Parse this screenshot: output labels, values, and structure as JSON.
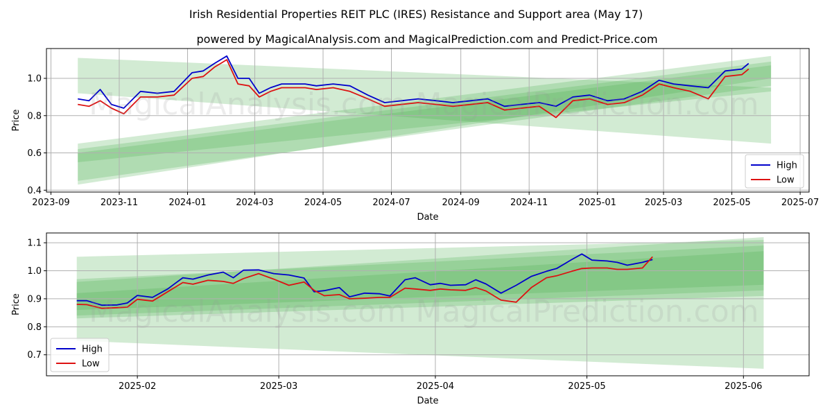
{
  "figure": {
    "title": "Irish Residential Properties REIT PLC (IRES) Resistance and Support area (May 17)",
    "subtitle": "powered by MagicalAnalysis.com and MagicalPrediction.com and Predict-Price.com",
    "watermarks": [
      "MagicalAnalysis.com",
      "MagicalPrediction.com"
    ]
  },
  "colors": {
    "high": "#0000cc",
    "low": "#dd1111",
    "band": "#4caf50",
    "grid": "#b0b0b0"
  },
  "chart_data": [
    {
      "type": "line",
      "xlabel": "Date",
      "ylabel": "Price",
      "grid": true,
      "legend_position": "lower-right",
      "xlim": [
        "2023-08-28",
        "2025-07-09"
      ],
      "ylim": [
        0.39,
        1.16
      ],
      "xticks": [
        "2023-09",
        "2023-11",
        "2024-01",
        "2024-03",
        "2024-05",
        "2024-07",
        "2024-09",
        "2024-11",
        "2025-01",
        "2025-03",
        "2025-05",
        "2025-07"
      ],
      "yticks": [
        0.4,
        0.6,
        0.8,
        1.0
      ],
      "x": [
        "2023-09-25",
        "2023-10-05",
        "2023-10-15",
        "2023-10-25",
        "2023-11-05",
        "2023-11-20",
        "2023-12-05",
        "2023-12-20",
        "2024-01-05",
        "2024-01-15",
        "2024-01-25",
        "2024-02-05",
        "2024-02-15",
        "2024-02-25",
        "2024-03-05",
        "2024-03-15",
        "2024-03-25",
        "2024-04-05",
        "2024-04-15",
        "2024-04-25",
        "2024-05-10",
        "2024-05-25",
        "2024-06-10",
        "2024-06-25",
        "2024-07-10",
        "2024-07-25",
        "2024-08-10",
        "2024-08-25",
        "2024-09-10",
        "2024-09-25",
        "2024-10-10",
        "2024-10-25",
        "2024-11-10",
        "2024-11-25",
        "2024-12-10",
        "2024-12-25",
        "2025-01-10",
        "2025-01-25",
        "2025-02-10",
        "2025-02-25",
        "2025-03-10",
        "2025-03-25",
        "2025-04-10",
        "2025-04-25",
        "2025-05-10",
        "2025-05-16"
      ],
      "series": [
        {
          "name": "High",
          "values": [
            0.89,
            0.88,
            0.94,
            0.86,
            0.84,
            0.93,
            0.92,
            0.93,
            1.03,
            1.04,
            1.08,
            1.12,
            1.0,
            1.0,
            0.92,
            0.95,
            0.97,
            0.97,
            0.97,
            0.96,
            0.97,
            0.96,
            0.91,
            0.87,
            0.88,
            0.89,
            0.88,
            0.87,
            0.88,
            0.89,
            0.85,
            0.86,
            0.87,
            0.85,
            0.9,
            0.91,
            0.88,
            0.89,
            0.93,
            0.99,
            0.97,
            0.96,
            0.95,
            1.04,
            1.05,
            1.08
          ]
        },
        {
          "name": "Low",
          "values": [
            0.86,
            0.85,
            0.88,
            0.84,
            0.81,
            0.9,
            0.9,
            0.91,
            1.0,
            1.01,
            1.06,
            1.1,
            0.97,
            0.96,
            0.9,
            0.93,
            0.95,
            0.95,
            0.95,
            0.94,
            0.95,
            0.93,
            0.89,
            0.85,
            0.86,
            0.87,
            0.86,
            0.85,
            0.86,
            0.87,
            0.83,
            0.84,
            0.85,
            0.79,
            0.88,
            0.89,
            0.86,
            0.87,
            0.91,
            0.97,
            0.95,
            0.93,
            0.89,
            1.01,
            1.02,
            1.05
          ]
        }
      ],
      "bands": [
        {
          "x": [
            "2023-09-25",
            "2025-06-05"
          ],
          "lower": [
            0.45,
            0.96
          ],
          "upper": [
            0.65,
            1.12
          ]
        },
        {
          "x": [
            "2023-09-25",
            "2025-06-05"
          ],
          "lower": [
            0.55,
            0.93
          ],
          "upper": [
            0.62,
            1.09
          ]
        },
        {
          "x": [
            "2023-09-25",
            "2025-06-05"
          ],
          "lower": [
            0.92,
            0.65
          ],
          "upper": [
            1.11,
            0.95
          ]
        },
        {
          "x": [
            "2023-09-25",
            "2025-06-05"
          ],
          "lower": [
            0.43,
            1.0
          ],
          "upper": [
            0.6,
            1.07
          ]
        }
      ]
    },
    {
      "type": "line",
      "xlabel": "Date",
      "ylabel": "Price",
      "grid": true,
      "legend_position": "lower-left",
      "xlim": [
        "2025-01-14",
        "2025-06-14"
      ],
      "ylim": [
        0.625,
        1.135
      ],
      "xticks": [
        "2025-02",
        "2025-03",
        "2025-04",
        "2025-05",
        "2025-06"
      ],
      "yticks": [
        0.7,
        0.8,
        0.9,
        1.0,
        1.1
      ],
      "x": [
        "2025-01-20",
        "2025-01-22",
        "2025-01-25",
        "2025-01-28",
        "2025-01-30",
        "2025-02-01",
        "2025-02-04",
        "2025-02-07",
        "2025-02-10",
        "2025-02-12",
        "2025-02-15",
        "2025-02-18",
        "2025-02-20",
        "2025-02-22",
        "2025-02-25",
        "2025-02-28",
        "2025-03-03",
        "2025-03-06",
        "2025-03-08",
        "2025-03-10",
        "2025-03-13",
        "2025-03-15",
        "2025-03-18",
        "2025-03-21",
        "2025-03-23",
        "2025-03-26",
        "2025-03-28",
        "2025-03-31",
        "2025-04-02",
        "2025-04-04",
        "2025-04-07",
        "2025-04-09",
        "2025-04-11",
        "2025-04-14",
        "2025-04-17",
        "2025-04-20",
        "2025-04-23",
        "2025-04-25",
        "2025-04-28",
        "2025-04-30",
        "2025-05-02",
        "2025-05-05",
        "2025-05-07",
        "2025-05-09",
        "2025-05-12",
        "2025-05-14"
      ],
      "series": [
        {
          "name": "High",
          "values": [
            0.893,
            0.893,
            0.877,
            0.878,
            0.885,
            0.912,
            0.905,
            0.935,
            0.975,
            0.97,
            0.985,
            0.995,
            0.975,
            1.002,
            1.003,
            0.99,
            0.985,
            0.974,
            0.925,
            0.929,
            0.94,
            0.907,
            0.92,
            0.918,
            0.91,
            0.968,
            0.975,
            0.95,
            0.955,
            0.948,
            0.95,
            0.968,
            0.953,
            0.92,
            0.948,
            0.98,
            0.998,
            1.008,
            1.04,
            1.06,
            1.038,
            1.035,
            1.03,
            1.02,
            1.03,
            1.04
          ]
        },
        {
          "name": "Low",
          "values": [
            0.88,
            0.879,
            0.866,
            0.868,
            0.87,
            0.898,
            0.892,
            0.925,
            0.958,
            0.952,
            0.966,
            0.962,
            0.955,
            0.972,
            0.99,
            0.97,
            0.948,
            0.96,
            0.93,
            0.911,
            0.915,
            0.9,
            0.902,
            0.905,
            0.905,
            0.938,
            0.935,
            0.93,
            0.935,
            0.932,
            0.93,
            0.94,
            0.928,
            0.895,
            0.888,
            0.94,
            0.975,
            0.982,
            0.998,
            1.008,
            1.01,
            1.01,
            1.005,
            1.005,
            1.01,
            1.05
          ]
        }
      ],
      "bands": [
        {
          "x": [
            "2025-01-20",
            "2025-06-05"
          ],
          "lower": [
            0.84,
            0.93
          ],
          "upper": [
            0.97,
            1.09
          ]
        },
        {
          "x": [
            "2025-01-20",
            "2025-06-05"
          ],
          "lower": [
            0.86,
            0.95
          ],
          "upper": [
            0.92,
            1.07
          ]
        },
        {
          "x": [
            "2025-01-20",
            "2025-06-05"
          ],
          "lower": [
            0.75,
            0.65
          ],
          "upper": [
            1.05,
            1.11
          ]
        },
        {
          "x": [
            "2025-01-20",
            "2025-06-05"
          ],
          "lower": [
            0.83,
            0.91
          ],
          "upper": [
            0.96,
            1.12
          ]
        }
      ]
    }
  ]
}
